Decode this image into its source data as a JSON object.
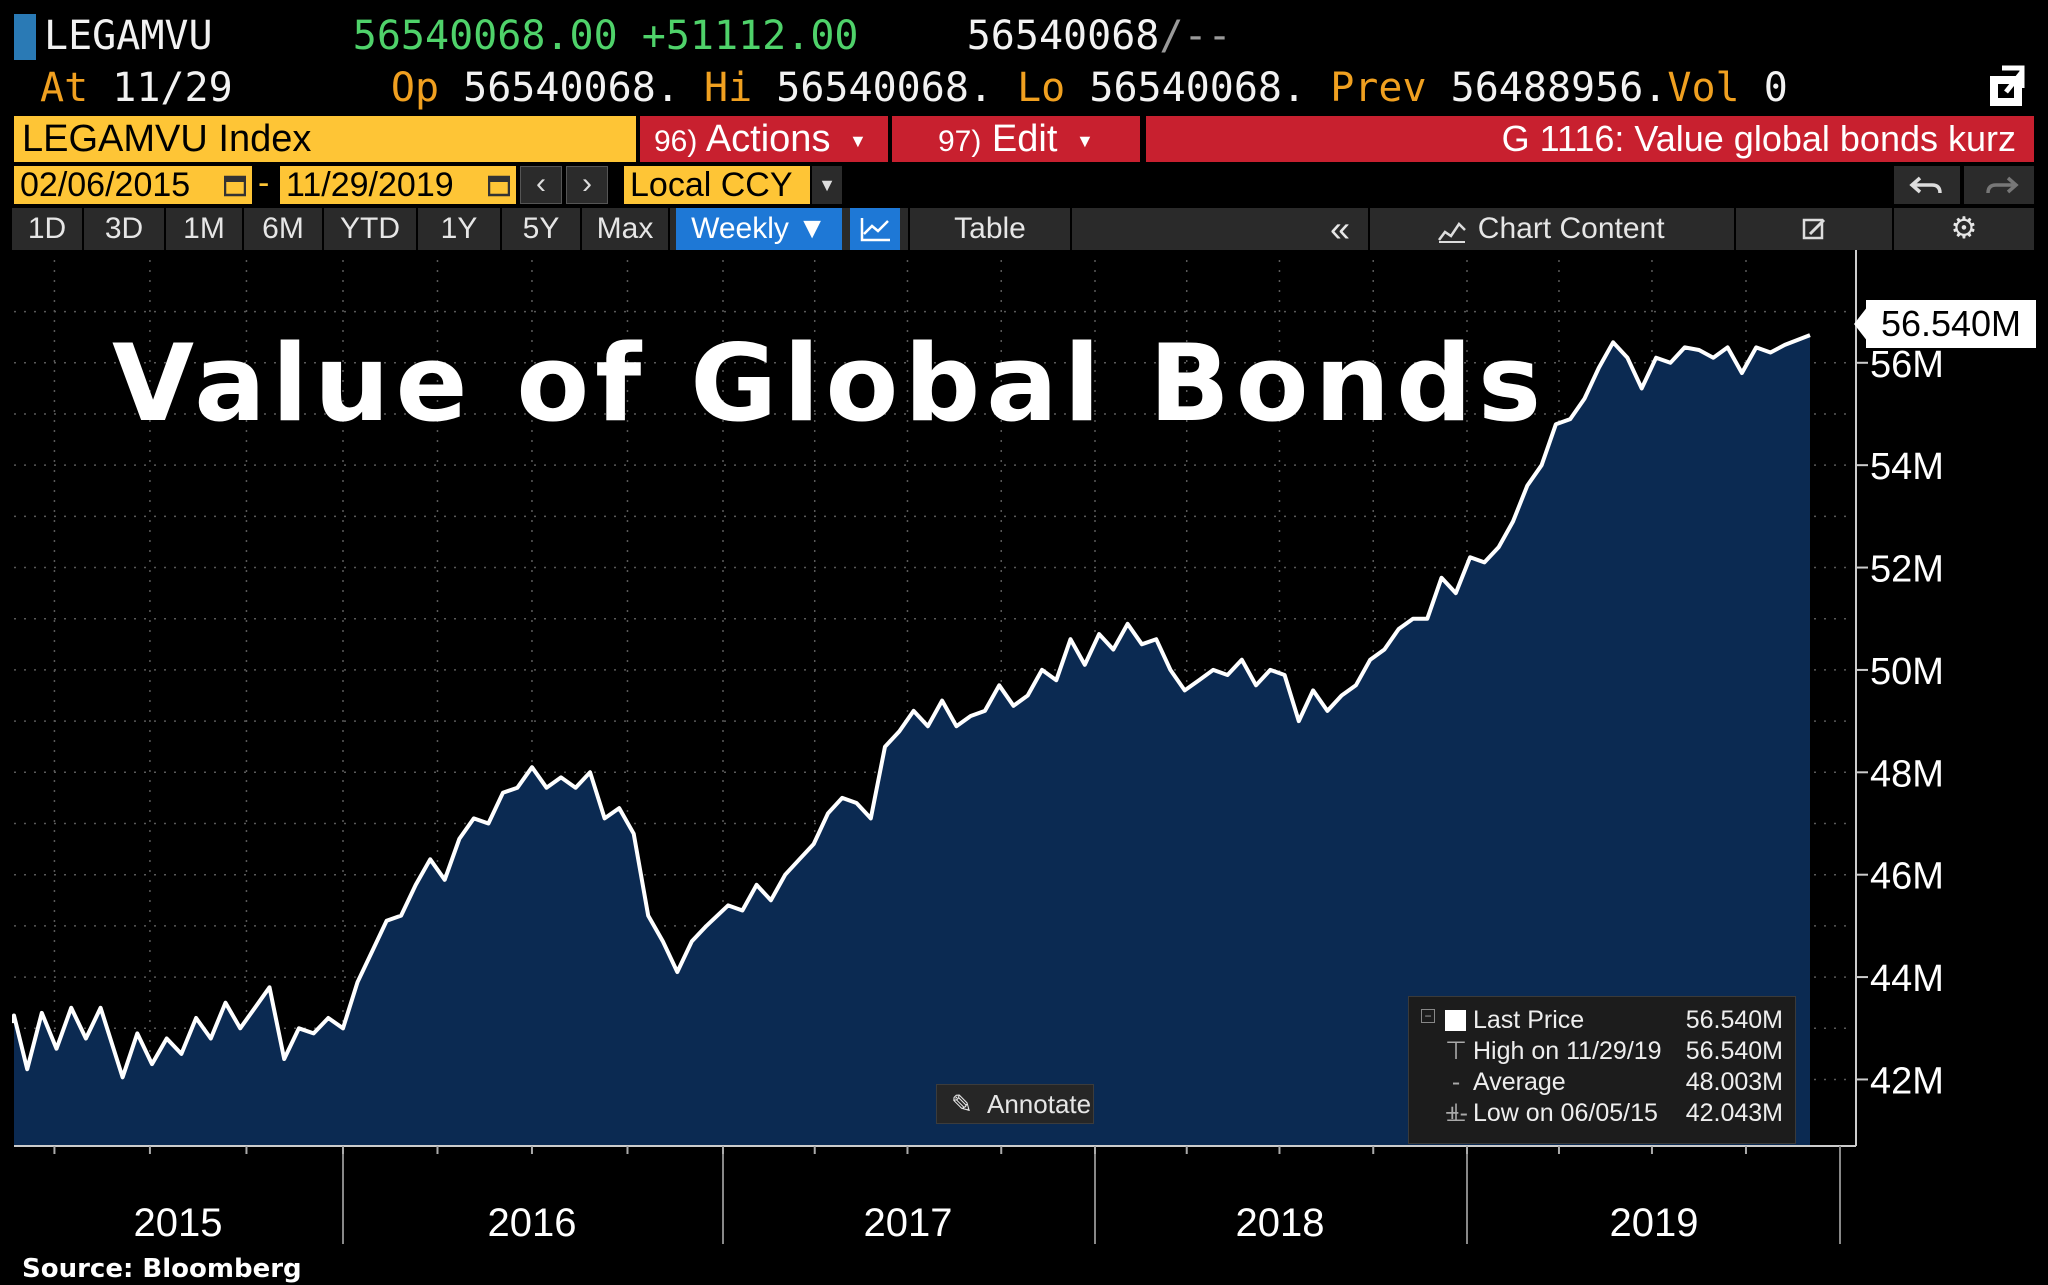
{
  "header": {
    "ticker": "LEGAMVU",
    "last_price": "56540068.00",
    "change": "+51112.00",
    "bid_ask": "56540068",
    "bid_ask_suffix": "/--",
    "at_label": "At",
    "at_date": "11/29",
    "open_label": "Op",
    "open": "56540068.",
    "high_label": "Hi",
    "high": "56540068.",
    "low_label": "Lo",
    "low": "56540068.",
    "prev_label": "Prev",
    "prev": "56488956.",
    "vol_label": "Vol",
    "vol": "0"
  },
  "command_bar": {
    "index_name": "LEGAMVU Index",
    "actions_num": "96)",
    "actions_label": "Actions",
    "edit_num": "97)",
    "edit_label": "Edit",
    "description": "G 1116: Value global bonds kurz"
  },
  "date_range": {
    "start": "02/06/2015",
    "separator": "-",
    "end": "11/29/2019",
    "currency": "Local CCY"
  },
  "toolbar": {
    "periods": [
      "1D",
      "3D",
      "1M",
      "6M",
      "YTD",
      "1Y",
      "5Y",
      "Max"
    ],
    "frequency": "Weekly",
    "table_label": "Table",
    "chart_content_label": "Chart Content"
  },
  "annotate_label": "Annotate",
  "legend": {
    "rows": [
      {
        "label": "Last Price",
        "value": "56.540M"
      },
      {
        "label": "High on 11/29/19",
        "value": "56.540M"
      },
      {
        "label": "Average",
        "value": "48.003M"
      },
      {
        "label": "Low on 06/05/15",
        "value": "42.043M"
      }
    ]
  },
  "last_value_tag": "56.540M",
  "source": "Source: Bloomberg",
  "colors": {
    "area_fill": "#0b2a52",
    "line": "#ffffff",
    "accent_yellow": "#fec536",
    "accent_red": "#c8202f",
    "accent_blue": "#1e78d6",
    "price_green": "#4fd26a",
    "label_orange": "#f0a020"
  },
  "chart_data": {
    "type": "area",
    "title": "Value of Global Bonds",
    "x_unit": "date",
    "y_unit": "USD",
    "ylim": [
      40700000,
      57500000
    ],
    "yticks": [
      42000000,
      44000000,
      46000000,
      48000000,
      50000000,
      52000000,
      54000000,
      56000000
    ],
    "ytick_labels": [
      "42M",
      "44M",
      "46M",
      "48M",
      "50M",
      "52M",
      "54M",
      "56M"
    ],
    "xtick_labels": [
      "2015",
      "2016",
      "2017",
      "2018",
      "2019"
    ],
    "grid": true,
    "legend_position": "bottom-right",
    "series": [
      {
        "name": "Last Price",
        "points": [
          [
            "2015-02-06",
            43100000
          ],
          [
            "2015-02-20",
            43250000
          ],
          [
            "2015-03-06",
            42200000
          ],
          [
            "2015-03-20",
            43300000
          ],
          [
            "2015-04-03",
            42600000
          ],
          [
            "2015-04-17",
            43400000
          ],
          [
            "2015-05-01",
            42800000
          ],
          [
            "2015-05-15",
            43400000
          ],
          [
            "2015-06-05",
            42043000
          ],
          [
            "2015-06-19",
            42900000
          ],
          [
            "2015-07-03",
            42300000
          ],
          [
            "2015-07-17",
            42800000
          ],
          [
            "2015-07-31",
            42500000
          ],
          [
            "2015-08-14",
            43200000
          ],
          [
            "2015-08-28",
            42800000
          ],
          [
            "2015-09-11",
            43500000
          ],
          [
            "2015-09-25",
            43000000
          ],
          [
            "2015-10-09",
            43400000
          ],
          [
            "2015-10-23",
            43800000
          ],
          [
            "2015-11-06",
            42400000
          ],
          [
            "2015-11-20",
            43000000
          ],
          [
            "2015-12-04",
            42900000
          ],
          [
            "2015-12-18",
            43200000
          ],
          [
            "2016-01-01",
            43000000
          ],
          [
            "2016-01-15",
            43900000
          ],
          [
            "2016-01-29",
            44500000
          ],
          [
            "2016-02-12",
            45100000
          ],
          [
            "2016-02-26",
            45200000
          ],
          [
            "2016-03-11",
            45800000
          ],
          [
            "2016-03-25",
            46300000
          ],
          [
            "2016-04-08",
            45900000
          ],
          [
            "2016-04-22",
            46700000
          ],
          [
            "2016-05-06",
            47100000
          ],
          [
            "2016-05-20",
            47000000
          ],
          [
            "2016-06-03",
            47600000
          ],
          [
            "2016-06-17",
            47700000
          ],
          [
            "2016-07-01",
            48100000
          ],
          [
            "2016-07-15",
            47700000
          ],
          [
            "2016-07-29",
            47900000
          ],
          [
            "2016-08-12",
            47700000
          ],
          [
            "2016-08-26",
            48000000
          ],
          [
            "2016-09-09",
            47100000
          ],
          [
            "2016-09-23",
            47300000
          ],
          [
            "2016-10-07",
            46800000
          ],
          [
            "2016-10-21",
            45200000
          ],
          [
            "2016-11-04",
            44700000
          ],
          [
            "2016-11-18",
            44100000
          ],
          [
            "2016-12-02",
            44700000
          ],
          [
            "2016-12-16",
            45000000
          ],
          [
            "2017-01-06",
            45400000
          ],
          [
            "2017-01-20",
            45300000
          ],
          [
            "2017-02-03",
            45800000
          ],
          [
            "2017-02-17",
            45500000
          ],
          [
            "2017-03-03",
            46000000
          ],
          [
            "2017-03-17",
            46300000
          ],
          [
            "2017-03-31",
            46600000
          ],
          [
            "2017-04-14",
            47200000
          ],
          [
            "2017-04-28",
            47500000
          ],
          [
            "2017-05-12",
            47400000
          ],
          [
            "2017-05-26",
            47100000
          ],
          [
            "2017-06-09",
            48500000
          ],
          [
            "2017-06-23",
            48800000
          ],
          [
            "2017-07-07",
            49200000
          ],
          [
            "2017-07-21",
            48900000
          ],
          [
            "2017-08-04",
            49400000
          ],
          [
            "2017-08-18",
            48900000
          ],
          [
            "2017-09-01",
            49100000
          ],
          [
            "2017-09-15",
            49200000
          ],
          [
            "2017-09-29",
            49700000
          ],
          [
            "2017-10-13",
            49300000
          ],
          [
            "2017-10-27",
            49500000
          ],
          [
            "2017-11-10",
            50000000
          ],
          [
            "2017-11-24",
            49800000
          ],
          [
            "2017-12-08",
            50600000
          ],
          [
            "2017-12-22",
            50100000
          ],
          [
            "2018-01-05",
            50700000
          ],
          [
            "2018-01-19",
            50400000
          ],
          [
            "2018-02-02",
            50900000
          ],
          [
            "2018-02-16",
            50500000
          ],
          [
            "2018-03-02",
            50600000
          ],
          [
            "2018-03-16",
            50000000
          ],
          [
            "2018-03-30",
            49600000
          ],
          [
            "2018-04-13",
            49800000
          ],
          [
            "2018-04-27",
            50000000
          ],
          [
            "2018-05-11",
            49900000
          ],
          [
            "2018-05-25",
            50200000
          ],
          [
            "2018-06-08",
            49700000
          ],
          [
            "2018-06-22",
            50000000
          ],
          [
            "2018-07-06",
            49900000
          ],
          [
            "2018-07-20",
            49000000
          ],
          [
            "2018-08-03",
            49600000
          ],
          [
            "2018-08-17",
            49200000
          ],
          [
            "2018-08-31",
            49500000
          ],
          [
            "2018-09-14",
            49700000
          ],
          [
            "2018-09-28",
            50200000
          ],
          [
            "2018-10-12",
            50400000
          ],
          [
            "2018-10-26",
            50800000
          ],
          [
            "2018-11-09",
            51000000
          ],
          [
            "2018-11-23",
            51000000
          ],
          [
            "2018-12-07",
            51800000
          ],
          [
            "2018-12-21",
            51500000
          ],
          [
            "2019-01-04",
            52200000
          ],
          [
            "2019-01-18",
            52100000
          ],
          [
            "2019-02-01",
            52400000
          ],
          [
            "2019-02-15",
            52900000
          ],
          [
            "2019-03-01",
            53600000
          ],
          [
            "2019-03-15",
            54000000
          ],
          [
            "2019-03-29",
            54800000
          ],
          [
            "2019-04-12",
            54900000
          ],
          [
            "2019-04-26",
            55300000
          ],
          [
            "2019-05-10",
            55900000
          ],
          [
            "2019-05-24",
            56400000
          ],
          [
            "2019-06-07",
            56100000
          ],
          [
            "2019-06-21",
            55500000
          ],
          [
            "2019-07-05",
            56100000
          ],
          [
            "2019-07-19",
            56000000
          ],
          [
            "2019-08-02",
            56300000
          ],
          [
            "2019-08-16",
            56250000
          ],
          [
            "2019-08-30",
            56100000
          ],
          [
            "2019-09-13",
            56300000
          ],
          [
            "2019-09-27",
            55800000
          ],
          [
            "2019-10-11",
            56300000
          ],
          [
            "2019-10-25",
            56200000
          ],
          [
            "2019-11-08",
            56350000
          ],
          [
            "2019-11-29",
            56540068
          ]
        ]
      }
    ]
  }
}
